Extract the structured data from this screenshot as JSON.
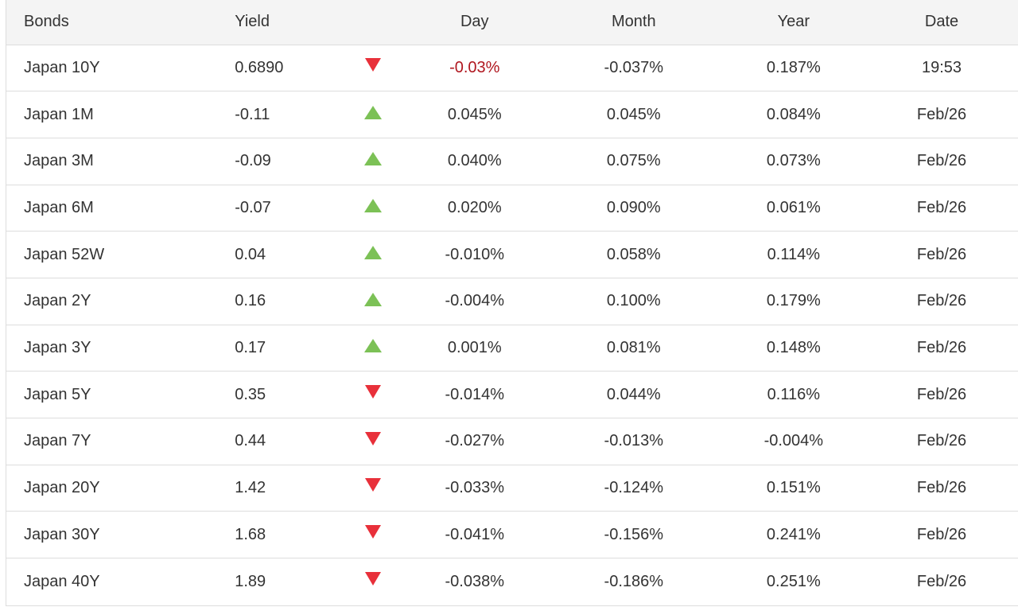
{
  "colors": {
    "down_arrow": "#e8303a",
    "up_arrow": "#7cc156",
    "highlight_negative": "#b0171f",
    "header_bg": "#f4f4f4"
  },
  "headers": {
    "bonds": "Bonds",
    "yield": "Yield",
    "day": "Day",
    "month": "Month",
    "year": "Year",
    "date": "Date"
  },
  "rows": [
    {
      "name": "Japan 10Y",
      "yield": "0.6890",
      "direction": "down",
      "day": "-0.03%",
      "month": "-0.037%",
      "year": "0.187%",
      "date": "19:53"
    },
    {
      "name": "Japan 1M",
      "yield": "-0.11",
      "direction": "up",
      "day": "0.045%",
      "month": "0.045%",
      "year": "0.084%",
      "date": "Feb/26"
    },
    {
      "name": "Japan 3M",
      "yield": "-0.09",
      "direction": "up",
      "day": "0.040%",
      "month": "0.075%",
      "year": "0.073%",
      "date": "Feb/26"
    },
    {
      "name": "Japan 6M",
      "yield": "-0.07",
      "direction": "up",
      "day": "0.020%",
      "month": "0.090%",
      "year": "0.061%",
      "date": "Feb/26"
    },
    {
      "name": "Japan 52W",
      "yield": "0.04",
      "direction": "up",
      "day": "-0.010%",
      "month": "0.058%",
      "year": "0.114%",
      "date": "Feb/26"
    },
    {
      "name": "Japan 2Y",
      "yield": "0.16",
      "direction": "up",
      "day": "-0.004%",
      "month": "0.100%",
      "year": "0.179%",
      "date": "Feb/26"
    },
    {
      "name": "Japan 3Y",
      "yield": "0.17",
      "direction": "up",
      "day": "0.001%",
      "month": "0.081%",
      "year": "0.148%",
      "date": "Feb/26"
    },
    {
      "name": "Japan 5Y",
      "yield": "0.35",
      "direction": "down",
      "day": "-0.014%",
      "month": "0.044%",
      "year": "0.116%",
      "date": "Feb/26"
    },
    {
      "name": "Japan 7Y",
      "yield": "0.44",
      "direction": "down",
      "day": "-0.027%",
      "month": "-0.013%",
      "year": "-0.004%",
      "date": "Feb/26"
    },
    {
      "name": "Japan 20Y",
      "yield": "1.42",
      "direction": "down",
      "day": "-0.033%",
      "month": "-0.124%",
      "year": "0.151%",
      "date": "Feb/26"
    },
    {
      "name": "Japan 30Y",
      "yield": "1.68",
      "direction": "down",
      "day": "-0.041%",
      "month": "-0.156%",
      "year": "0.241%",
      "date": "Feb/26"
    },
    {
      "name": "Japan 40Y",
      "yield": "1.89",
      "direction": "down",
      "day": "-0.038%",
      "month": "-0.186%",
      "year": "0.251%",
      "date": "Feb/26"
    }
  ]
}
